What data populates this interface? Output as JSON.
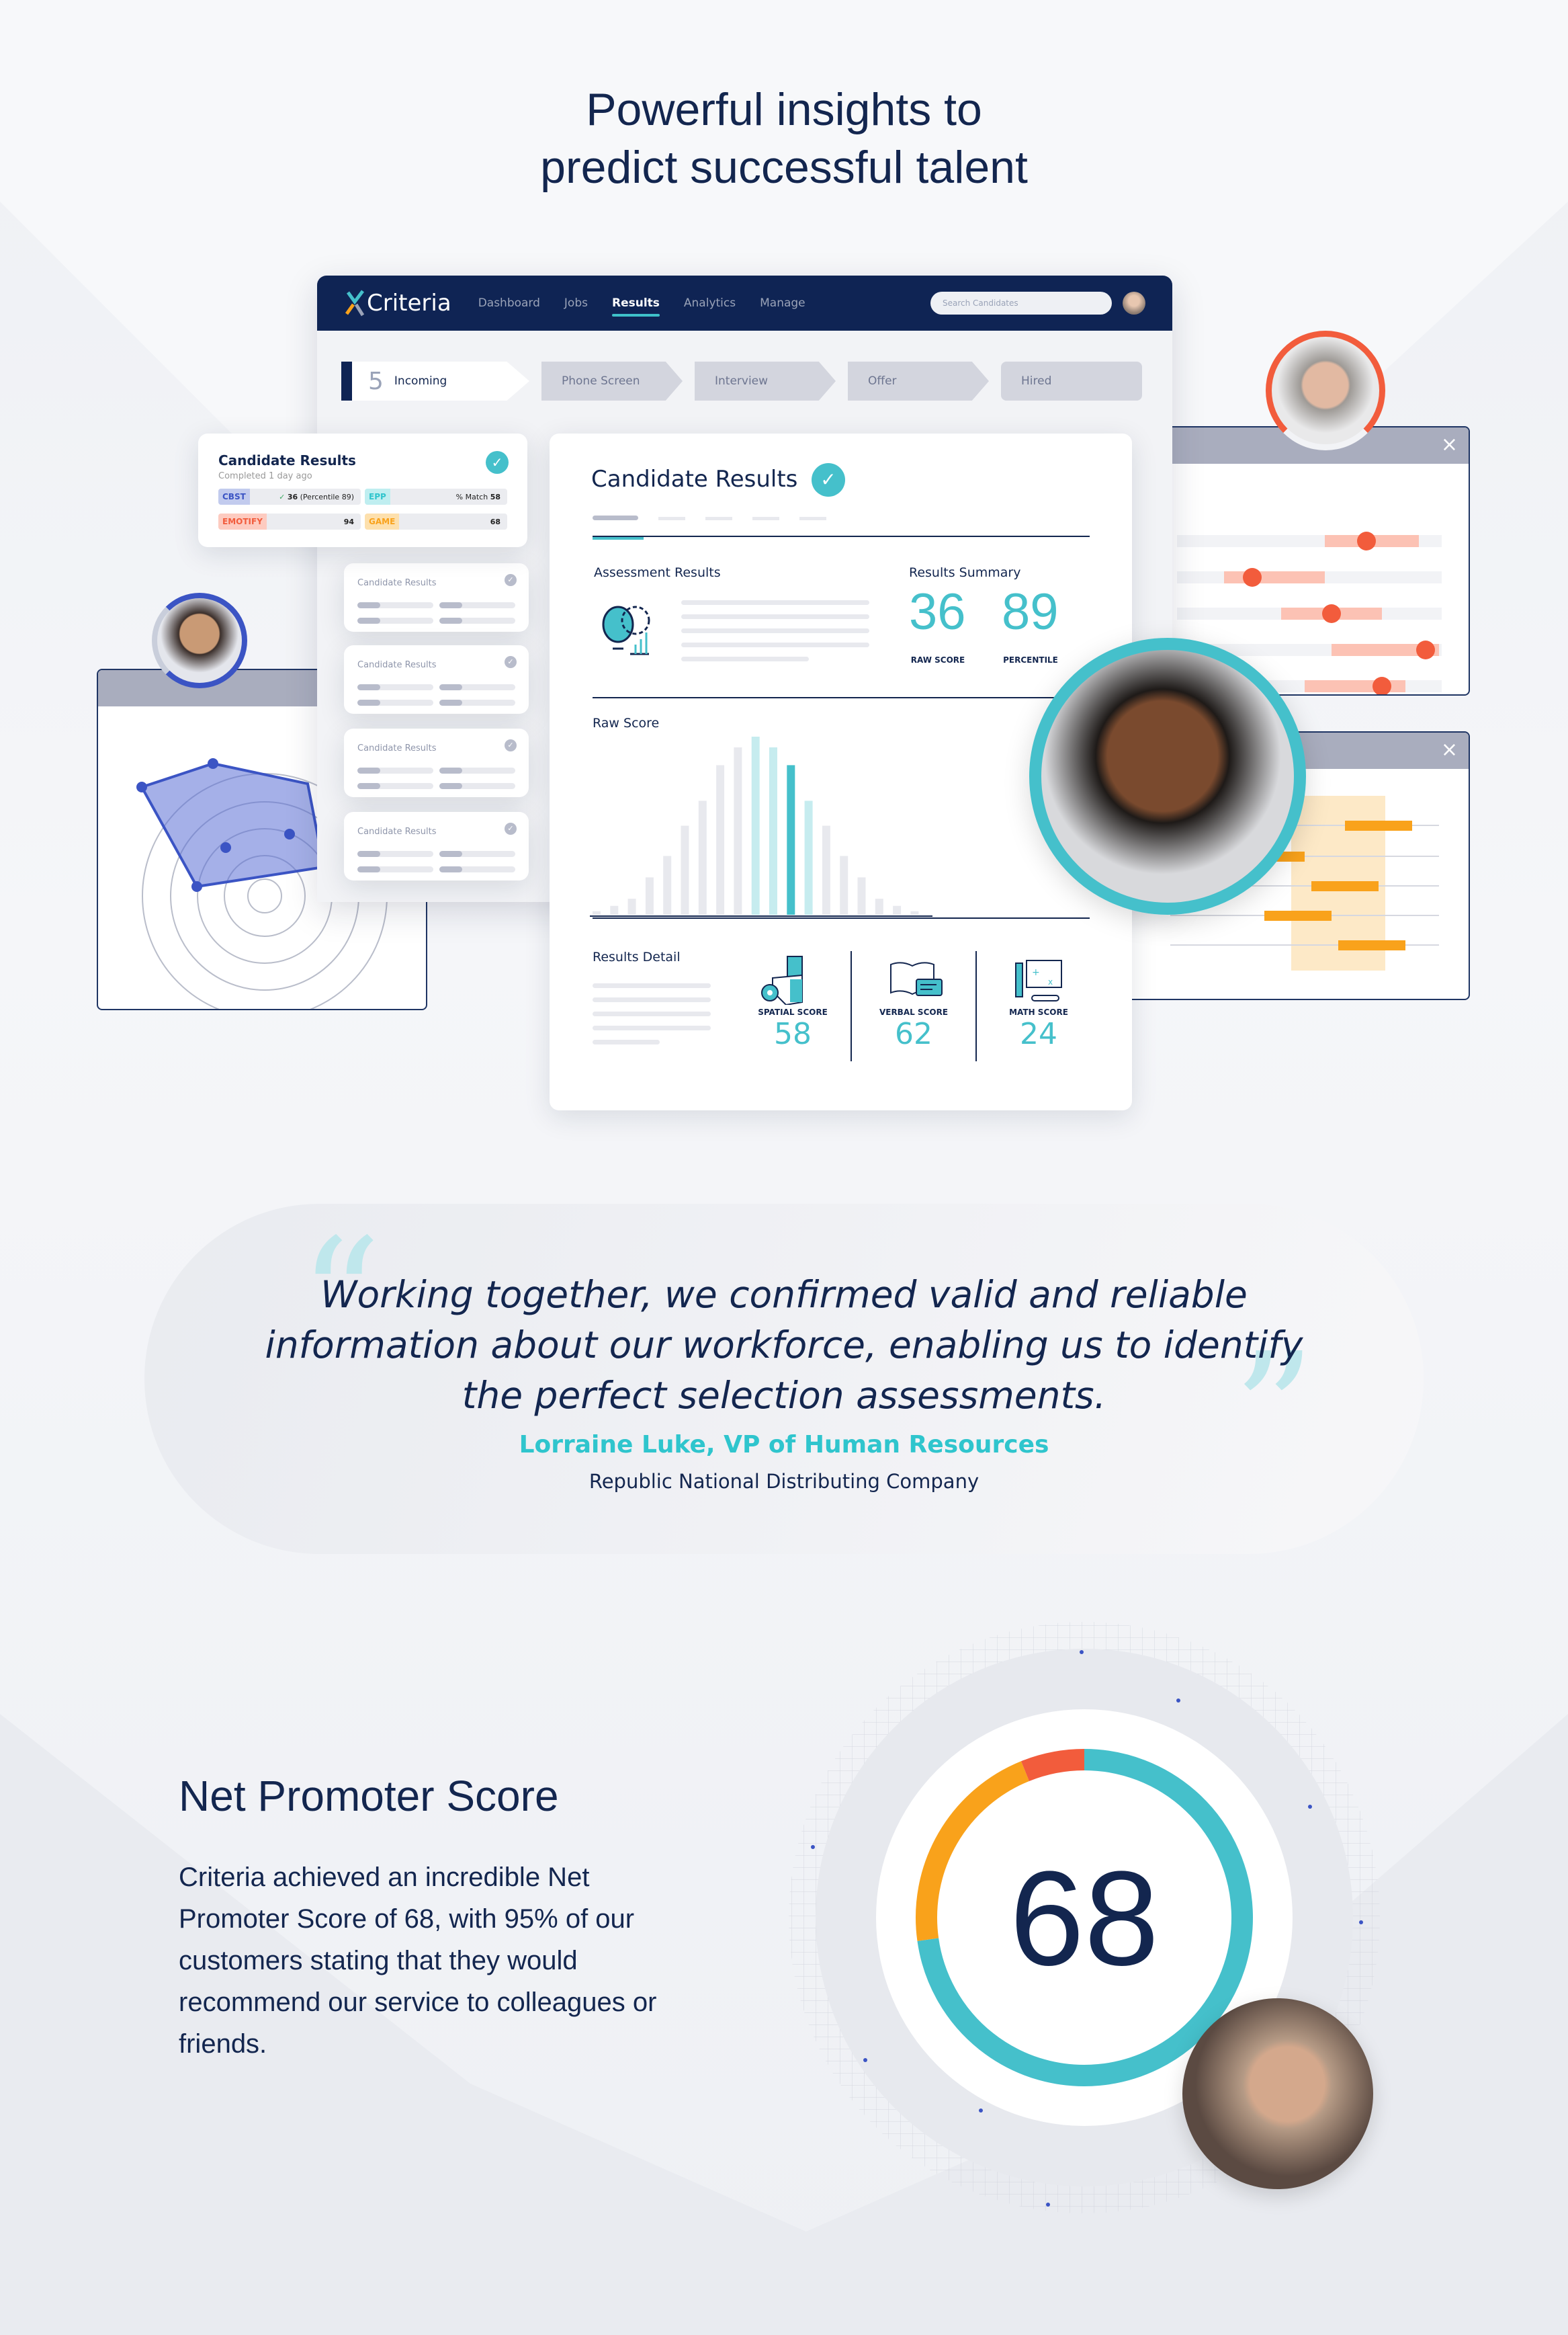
{
  "headline": {
    "line1": "Powerful insights to",
    "line2": "predict successful talent"
  },
  "nav": {
    "logo": "Criteria",
    "items": [
      "Dashboard",
      "Jobs",
      "Results",
      "Analytics",
      "Manage"
    ],
    "active": "Results",
    "search_placeholder": "Search Candidates"
  },
  "pipeline": {
    "incoming_count": "5",
    "stages": [
      "Incoming",
      "Phone Screen",
      "Interview",
      "Offer",
      "Hired"
    ]
  },
  "summary_card": {
    "title": "Candidate Results",
    "subtitle": "Completed 1 day ago",
    "tags": [
      {
        "label": "CBST",
        "value_bold": "36",
        "value": "(Percentile 89)",
        "color": "#3b54c4",
        "bg": "#c2cbee"
      },
      {
        "label": "EPP",
        "value_prefix": "% Match",
        "value_bold": "58",
        "color": "#2fc5cd",
        "bg": "#bfeef0"
      },
      {
        "label": "EMOTIFY",
        "value_bold": "94",
        "color": "#f25c3c",
        "bg": "#fdcbc0"
      },
      {
        "label": "GAME",
        "value_bold": "68",
        "color": "#f9a21b",
        "bg": "#fde0ad"
      }
    ]
  },
  "mini_cards": [
    "Candidate Results",
    "Candidate Results",
    "Candidate Results",
    "Candidate Results"
  ],
  "main_card": {
    "title": "Candidate Results",
    "assessment_label": "Assessment Results",
    "summary_label": "Results Summary",
    "raw_score": "36",
    "raw_score_label": "RAW SCORE",
    "percentile": "89",
    "percentile_label": "PERCENTILE",
    "raw_score_chart_label": "Raw Score",
    "distribution": [
      2,
      5,
      9,
      21,
      33,
      50,
      64,
      84,
      94,
      100,
      94,
      84,
      64,
      50,
      33,
      21,
      9,
      5,
      2
    ],
    "highlight_light": [
      9,
      10,
      12
    ],
    "highlight_dark": 11,
    "detail_label": "Results Detail",
    "details": [
      {
        "label": "SPATIAL SCORE",
        "value": "58",
        "icon": "cube-gear-icon"
      },
      {
        "label": "VERBAL SCORE",
        "value": "62",
        "icon": "book-chat-icon"
      },
      {
        "label": "MATH SCORE",
        "value": "24",
        "icon": "math-board-icon"
      }
    ]
  },
  "quote": {
    "text": "Working together, we confirmed valid and reliable information about our workforce, enabling us to identify the perfect selection assessments.",
    "author": "Lorraine Luke, VP of Human Resources",
    "company": "Republic National Distributing Company"
  },
  "nps": {
    "title": "Net Promoter Score",
    "body": "Criteria achieved an incredible Net Promoter Score of 68, with 95% of our customers stating that they would recommend our service to colleagues or friends.",
    "score": "68",
    "colors": {
      "promoter": "#45c0cb",
      "passive": "#f9a21b",
      "detractor": "#f25c3c"
    }
  },
  "colors": {
    "navy": "#0f2454",
    "teal": "#45c0cb",
    "orange": "#f9a21b",
    "red": "#f25c3c"
  }
}
